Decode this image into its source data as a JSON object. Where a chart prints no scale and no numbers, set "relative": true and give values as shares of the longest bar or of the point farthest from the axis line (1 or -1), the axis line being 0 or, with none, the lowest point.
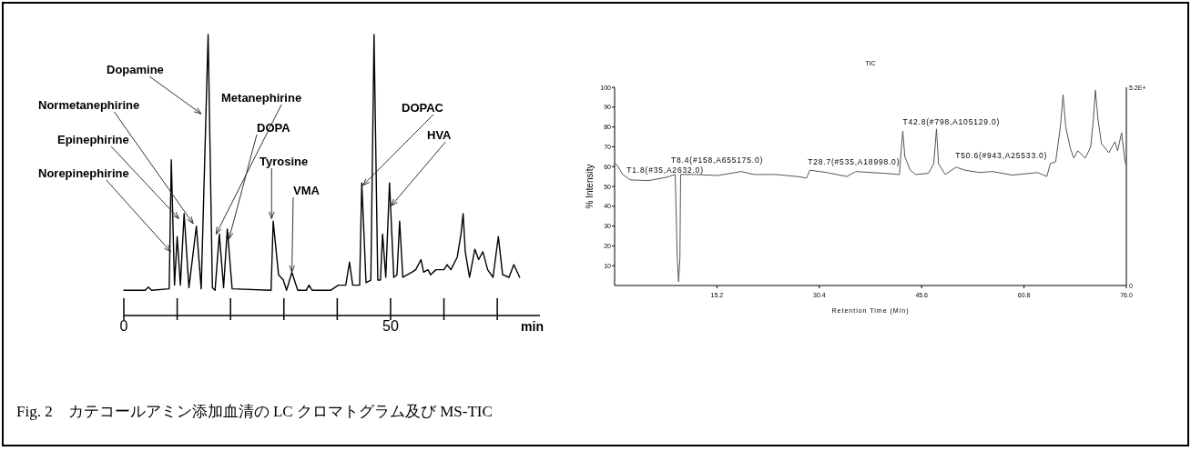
{
  "chart_data": [
    {
      "type": "line",
      "relative": true,
      "xlabel": "min",
      "xlim": [
        0,
        78
      ],
      "xticks": [
        0,
        {
          "value": 10,
          "label": null
        },
        {
          "value": 20,
          "label": null
        },
        {
          "value": 30,
          "label": null
        },
        {
          "value": 40,
          "label": null
        },
        50,
        {
          "value": 60,
          "label": null
        },
        {
          "value": 70,
          "label": null
        }
      ],
      "series": [
        {
          "color": "#000000",
          "x": [
            0,
            4.0,
            4.6,
            5.2,
            8.5,
            8.9,
            9.5,
            10.0,
            10.6,
            11.3,
            12.2,
            13.6,
            14.5,
            15.8,
            16.6,
            17.1,
            17.9,
            18.7,
            19.4,
            20.3,
            27.6,
            28.0,
            29.0,
            29.9,
            30.5,
            31.5,
            32.6,
            34.2,
            34.7,
            35.3,
            38.8,
            40.2,
            41.6,
            42.3,
            42.9,
            44.2,
            44.6,
            45.4,
            46.3,
            46.9,
            47.6,
            48.1,
            48.5,
            49.1,
            49.8,
            50.6,
            51.2,
            51.7,
            52.3,
            54.0,
            54.7,
            55.7,
            56.2,
            57.0,
            57.5,
            58.5,
            60.0,
            60.6,
            61.3,
            62.5,
            63.2,
            63.6,
            64.0,
            64.8,
            65.8,
            66.5,
            67.3,
            68.2,
            69.2,
            70.2,
            71.0,
            72.2,
            73.1,
            74.2
          ],
          "values": [
            0.09,
            0.09,
            0.101,
            0.09,
            0.095,
            0.554,
            0.108,
            0.281,
            0.108,
            0.363,
            0.099,
            0.318,
            0.095,
            1.0,
            0.099,
            0.09,
            0.29,
            0.099,
            0.308,
            0.095,
            0.09,
            0.336,
            0.145,
            0.126,
            0.09,
            0.154,
            0.09,
            0.09,
            0.108,
            0.09,
            0.09,
            0.108,
            0.108,
            0.19,
            0.108,
            0.108,
            0.472,
            0.117,
            0.126,
            1.0,
            0.126,
            0.126,
            0.29,
            0.136,
            0.472,
            0.136,
            0.145,
            0.336,
            0.136,
            0.154,
            0.163,
            0.199,
            0.154,
            0.163,
            0.145,
            0.163,
            0.163,
            0.181,
            0.163,
            0.208,
            0.29,
            0.363,
            0.227,
            0.136,
            0.236,
            0.199,
            0.227,
            0.163,
            0.136,
            0.281,
            0.145,
            0.136,
            0.181,
            0.136
          ]
        }
      ],
      "annotations": [
        {
          "text": "Norepinephirine",
          "x": 8.8,
          "y": 0.227
        },
        {
          "text": "Epinephirine",
          "x": 10.3,
          "y": 0.345
        },
        {
          "text": "Normetanephirine",
          "x": 13.0,
          "y": 0.327
        },
        {
          "text": "Dopamine",
          "x": 14.5,
          "y": 0.718
        },
        {
          "text": "Metanephirine",
          "x": 17.3,
          "y": 0.29
        },
        {
          "text": "DOPA",
          "x": 19.7,
          "y": 0.272
        },
        {
          "text": "Tyrosine",
          "x": 27.7,
          "y": 0.345
        },
        {
          "text": "VMA",
          "x": 31.5,
          "y": 0.154
        },
        {
          "text": "DOPAC",
          "x": 44.8,
          "y": 0.463
        },
        {
          "text": "HVA",
          "x": 50.1,
          "y": 0.39
        },
        "Fig. 2　カテコールアミン添加血清の LC クロマトグラム及び MS-TIC"
      ]
    },
    {
      "type": "line",
      "title": "TIC",
      "xlabel": "Retention Time (Min)",
      "ylabel": "% Intensity",
      "xlim": [
        0,
        76
      ],
      "xticks": [
        15.2,
        30.4,
        45.6,
        60.8,
        {
          "value": 76,
          "label": "76.0"
        }
      ],
      "ylim": [
        0,
        100
      ],
      "yticks": [
        10,
        20,
        30,
        40,
        50,
        60,
        70,
        80,
        90,
        100
      ],
      "series": [
        {
          "color": "#555555",
          "x": [
            0,
            0.4,
            1.2,
            2.3,
            5.0,
            7.7,
            9.0,
            9.3,
            9.5,
            9.7,
            9.8,
            12.0,
            15.3,
            18.8,
            20.7,
            23.9,
            27.1,
            28.5,
            29.0,
            31.5,
            34.5,
            35.8,
            40.1,
            42.3,
            42.5,
            42.8,
            43.1,
            43.9,
            44.7,
            46.6,
            47.4,
            47.8,
            48.1,
            49.1,
            50.7,
            52.0,
            54.2,
            56.1,
            59.1,
            62.8,
            64.2,
            64.7,
            65.5,
            66.2,
            66.6,
            67.0,
            67.7,
            68.2,
            68.8,
            69.9,
            70.7,
            71.1,
            71.4,
            71.8,
            72.3,
            73.4,
            74.3,
            74.7,
            75.3,
            75.8,
            76.0
          ],
          "values": [
            61.5,
            60.6,
            56,
            53.3,
            52.9,
            54.6,
            56,
            14,
            2,
            14,
            56,
            56,
            55.5,
            57.5,
            56,
            56,
            55,
            54.2,
            58.2,
            57,
            55,
            57.5,
            56.6,
            56,
            66,
            78,
            65,
            58.2,
            56,
            56.6,
            61.5,
            79,
            61.5,
            56,
            59.7,
            58.2,
            57,
            57.5,
            55.7,
            57,
            55,
            61.5,
            62.5,
            80,
            96.3,
            80,
            69,
            64.3,
            68,
            64.3,
            69.8,
            83.5,
            98.5,
            83.5,
            71.6,
            67,
            72.5,
            68,
            77,
            62.5,
            60.6
          ]
        }
      ],
      "annotations": [
        {
          "text": "T1.8(#35,A2632.0)",
          "x": 1.8,
          "y": 54.5
        },
        {
          "text": "T8.4(#158,A655175.0)",
          "x": 8.4,
          "y": 55.4
        },
        {
          "text": "T28.7(#535,A18998.0)",
          "x": 28.7,
          "y": 55.8
        },
        {
          "text": "T42.8(#798,A105129.0)",
          "x": 42.8,
          "y": 78
        },
        {
          "text": "T50.6(#943,A25533.0)",
          "x": 50.6,
          "y": 59.5
        },
        "5.2E+",
        "0"
      ]
    }
  ]
}
